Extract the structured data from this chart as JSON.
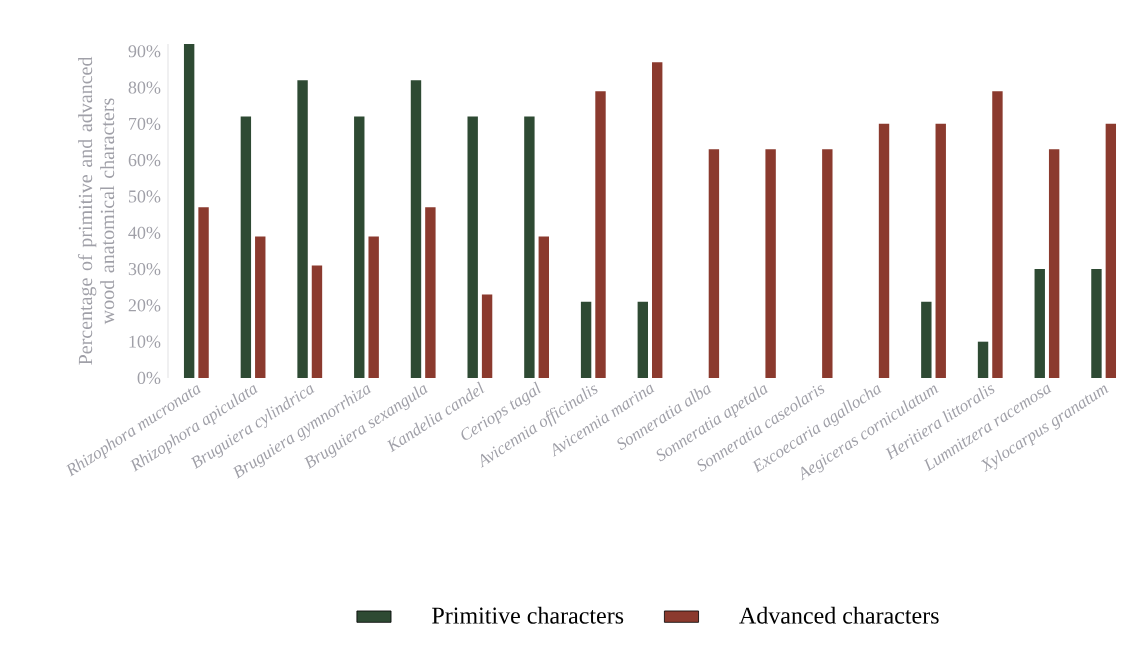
{
  "chart_data": {
    "type": "bar",
    "ylabel": "Percentage of primitive and advanced wood anatomical characters",
    "categories": [
      "Rhizophora mucronata",
      "Rhizophora apiculata",
      "Bruguiera cylindrica",
      "Bruguiera gymnorrhiza",
      "Bruguiera sexangula",
      "Kandelia candel",
      "Ceriops tagal",
      "Avicennia officinalis",
      "Avicennia marina",
      "Sonneratia alba",
      "Sonneratia apetala",
      "Sonneratia caseolaris",
      "Excoecaria agallocha",
      "Aegiceras corniculatum",
      "Heritiera littoralis",
      "Lumnitzera racemosa",
      "Xylocarpus granatum"
    ],
    "series": [
      {
        "name": "Primitive characters",
        "color": "#2e4a33",
        "values": [
          92,
          72,
          82,
          72,
          82,
          72,
          72,
          21,
          21,
          0,
          0,
          0,
          0,
          21,
          10,
          30,
          30
        ]
      },
      {
        "name": "Advanced characters",
        "color": "#8b3a2e",
        "values": [
          47,
          39,
          31,
          39,
          47,
          23,
          39,
          79,
          87,
          63,
          63,
          63,
          70,
          70,
          79,
          63,
          70
        ]
      }
    ],
    "ylim": [
      0,
      92
    ],
    "yticks": [
      {
        "value": 0,
        "label": "0%"
      },
      {
        "value": 10,
        "label": "10%"
      },
      {
        "value": 20,
        "label": "20%"
      },
      {
        "value": 30,
        "label": "30%"
      },
      {
        "value": 40,
        "label": "40%"
      },
      {
        "value": 50,
        "label": "50%"
      },
      {
        "value": 60,
        "label": "60%"
      },
      {
        "value": 70,
        "label": "70%"
      },
      {
        "value": 80,
        "label": "80%"
      },
      {
        "value": 90,
        "label": "90%"
      }
    ],
    "legend": "bottom",
    "grid": false
  }
}
